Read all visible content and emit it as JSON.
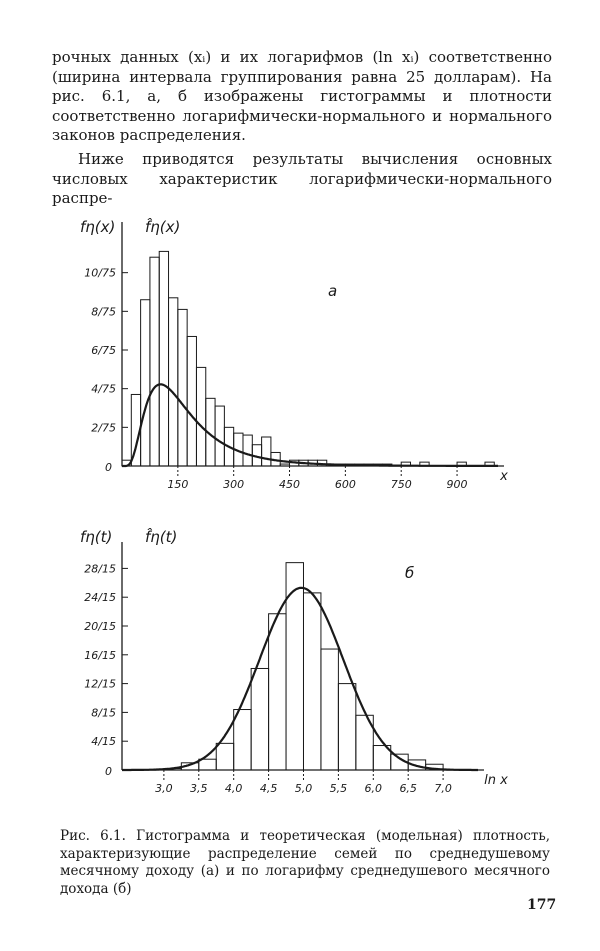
{
  "text": {
    "paragraph1": "рочных данных (xᵢ) и их логарифмов (ln xᵢ) соответственно (ширина интервала группирования равна 25 долларам). На рис. 6.1, а, б изображены гистограммы и плотности соответственно логарифмически-нормального и нормального законов распределения.",
    "paragraph2": "Ниже приводятся результаты вычисления основных числовых характеристик логарифмически-нормального распре-",
    "caption": "Рис. 6.1. Гистограмма и теоретическая (модельная) плотность, характеризующие распределение семей по среднедушевому месячному доходу (а) и по логарифму среднедушевого месячного дохода (б)",
    "page_number": "177"
  },
  "chart_data": [
    {
      "type": "bar",
      "panel": "а",
      "ylabel_empirical": "fη(x)",
      "ylabel_theoretical": "f̂η(x)",
      "xlabel": "x",
      "xlim": [
        0,
        1010
      ],
      "ylim": [
        0,
        12
      ],
      "origin_label": "0",
      "x_ticks": [
        150,
        300,
        450,
        600,
        750,
        900
      ],
      "y_ticks": [
        2,
        4,
        6,
        8,
        10
      ],
      "y_tick_labels": [
        "2/75",
        "4/75",
        "6/75",
        "8/75",
        "10/75"
      ],
      "bin_width": 25,
      "bins": [
        {
          "x": 0,
          "v": 0.3
        },
        {
          "x": 25,
          "v": 3.7
        },
        {
          "x": 50,
          "v": 8.6
        },
        {
          "x": 75,
          "v": 10.8
        },
        {
          "x": 100,
          "v": 11.1
        },
        {
          "x": 125,
          "v": 8.7
        },
        {
          "x": 150,
          "v": 8.1
        },
        {
          "x": 175,
          "v": 6.7
        },
        {
          "x": 200,
          "v": 5.1
        },
        {
          "x": 225,
          "v": 3.5
        },
        {
          "x": 250,
          "v": 3.1
        },
        {
          "x": 275,
          "v": 2.0
        },
        {
          "x": 300,
          "v": 1.7
        },
        {
          "x": 325,
          "v": 1.6
        },
        {
          "x": 350,
          "v": 1.1
        },
        {
          "x": 375,
          "v": 1.5
        },
        {
          "x": 400,
          "v": 0.7
        },
        {
          "x": 425,
          "v": 0.1
        },
        {
          "x": 450,
          "v": 0.3
        },
        {
          "x": 475,
          "v": 0.3
        },
        {
          "x": 500,
          "v": 0.3
        },
        {
          "x": 525,
          "v": 0.3
        },
        {
          "x": 550,
          "v": 0.1
        },
        {
          "x": 575,
          "v": 0.1
        },
        {
          "x": 600,
          "v": 0.1
        },
        {
          "x": 625,
          "v": 0.1
        },
        {
          "x": 650,
          "v": 0.1
        },
        {
          "x": 675,
          "v": 0.1
        },
        {
          "x": 700,
          "v": 0.1
        },
        {
          "x": 750,
          "v": 0.2
        },
        {
          "x": 800,
          "v": 0.2
        },
        {
          "x": 900,
          "v": 0.2
        },
        {
          "x": 975,
          "v": 0.2
        }
      ],
      "curve": {
        "type": "lognormal",
        "mu": 5.0,
        "sigma": 0.6,
        "scale": 31.5
      }
    },
    {
      "type": "bar",
      "panel": "б",
      "ylabel_empirical": "fη(t)",
      "ylabel_theoretical": "f̂η(t)",
      "xlabel": "ln x",
      "xlim": [
        2.4,
        7.5
      ],
      "ylim": [
        0,
        30
      ],
      "origin_label": "0",
      "x_ticks": [
        3.0,
        3.5,
        4.0,
        4.5,
        5.0,
        5.5,
        6.0,
        6.5,
        7.0
      ],
      "x_tick_labels": [
        "3,0",
        "3,5",
        "4,0",
        "4,5",
        "5,0",
        "5,5",
        "6,0",
        "6,5",
        "7,0"
      ],
      "y_ticks": [
        4,
        8,
        12,
        16,
        20,
        24,
        28
      ],
      "y_tick_labels": [
        "4/15",
        "8/15",
        "12/15",
        "16/15",
        "20/15",
        "24/15",
        "28/15"
      ],
      "bin_width": 0.25,
      "bins": [
        {
          "x": 3.0,
          "v": 0.2
        },
        {
          "x": 3.25,
          "v": 1.0
        },
        {
          "x": 3.5,
          "v": 1.5
        },
        {
          "x": 3.75,
          "v": 3.7
        },
        {
          "x": 4.0,
          "v": 8.4
        },
        {
          "x": 4.25,
          "v": 14.1
        },
        {
          "x": 4.5,
          "v": 21.7
        },
        {
          "x": 4.75,
          "v": 28.8
        },
        {
          "x": 5.0,
          "v": 24.6
        },
        {
          "x": 5.25,
          "v": 16.8
        },
        {
          "x": 5.5,
          "v": 12.0
        },
        {
          "x": 5.75,
          "v": 7.6
        },
        {
          "x": 6.0,
          "v": 3.4
        },
        {
          "x": 6.25,
          "v": 2.2
        },
        {
          "x": 6.5,
          "v": 1.4
        },
        {
          "x": 6.75,
          "v": 0.8
        }
      ],
      "curve": {
        "type": "normal",
        "mu": 4.97,
        "sigma": 0.6,
        "peak": 25.3
      }
    }
  ]
}
